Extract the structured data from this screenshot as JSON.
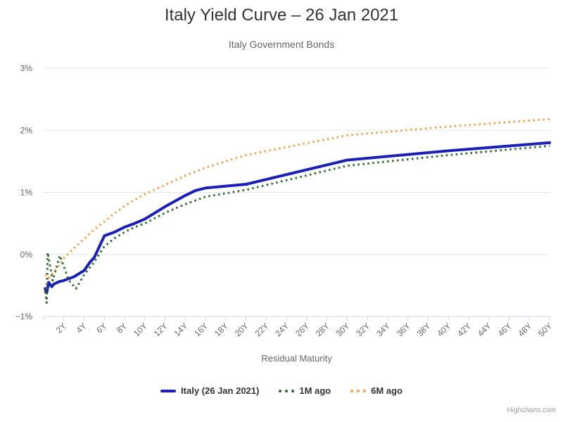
{
  "credits": "Highcharts.com",
  "colors": {
    "grid": "#e6e6e6",
    "axis_line": "#ccd6eb",
    "title_text": "#333333",
    "subtitle_text": "#666666",
    "tick_text": "#666666",
    "italy_blue": "#1b20b4",
    "one_month_green": "#2d6a2d",
    "six_month_orange": "#f3a34c"
  },
  "chart_data": {
    "type": "line",
    "title": "Italy Yield Curve – 26 Jan 2021",
    "subtitle": "Italy Government Bonds",
    "xlabel": "Residual Maturity",
    "ylabel": "",
    "xlim": [
      0,
      50
    ],
    "ylim": [
      -1,
      3
    ],
    "grid": "horizontal",
    "legend_position": "bottom",
    "xticks": {
      "interval": 2,
      "labels": [
        "2Y",
        "4Y",
        "6Y",
        "8Y",
        "10Y",
        "12Y",
        "14Y",
        "16Y",
        "18Y",
        "20Y",
        "22Y",
        "24Y",
        "26Y",
        "28Y",
        "30Y",
        "32Y",
        "34Y",
        "36Y",
        "38Y",
        "40Y",
        "42Y",
        "44Y",
        "46Y",
        "48Y",
        "50Y"
      ]
    },
    "yticks": {
      "values": [
        -1,
        0,
        1,
        2,
        3
      ],
      "labels": [
        "−1%",
        "0%",
        "1%",
        "2%",
        "3%"
      ]
    },
    "series": [
      {
        "name": "Italy (26 Jan 2021)",
        "color": "#1b20b4",
        "style": "solid",
        "width": 4,
        "points": [
          [
            0.15,
            -0.55
          ],
          [
            0.3,
            -0.62
          ],
          [
            0.5,
            -0.45
          ],
          [
            0.8,
            -0.52
          ],
          [
            1,
            -0.48
          ],
          [
            1.5,
            -0.44
          ],
          [
            2,
            -0.42
          ],
          [
            3,
            -0.36
          ],
          [
            4,
            -0.26
          ],
          [
            4.6,
            -0.12
          ],
          [
            5,
            -0.05
          ],
          [
            6,
            0.3
          ],
          [
            7,
            0.36
          ],
          [
            8,
            0.44
          ],
          [
            9,
            0.5
          ],
          [
            10,
            0.57
          ],
          [
            12,
            0.77
          ],
          [
            14,
            0.95
          ],
          [
            15,
            1.03
          ],
          [
            16,
            1.07
          ],
          [
            20,
            1.13
          ],
          [
            30,
            1.52
          ],
          [
            40,
            1.67
          ],
          [
            50,
            1.8
          ]
        ]
      },
      {
        "name": "1M ago",
        "color": "#2d6a2d",
        "style": "dotted",
        "width": 3,
        "points": [
          [
            0.15,
            -0.6
          ],
          [
            0.3,
            -0.78
          ],
          [
            0.4,
            0.03
          ],
          [
            0.9,
            -0.42
          ],
          [
            1.6,
            -0.02
          ],
          [
            2.5,
            -0.42
          ],
          [
            3.2,
            -0.55
          ],
          [
            4,
            -0.33
          ],
          [
            5,
            -0.12
          ],
          [
            6,
            0.13
          ],
          [
            7,
            0.26
          ],
          [
            8,
            0.36
          ],
          [
            9,
            0.44
          ],
          [
            10,
            0.5
          ],
          [
            12,
            0.67
          ],
          [
            14,
            0.81
          ],
          [
            16,
            0.93
          ],
          [
            20,
            1.04
          ],
          [
            30,
            1.43
          ],
          [
            40,
            1.6
          ],
          [
            50,
            1.75
          ]
        ]
      },
      {
        "name": "6M ago",
        "color": "#f3a34c",
        "style": "dotted",
        "width": 3,
        "points": [
          [
            0.15,
            -0.32
          ],
          [
            0.5,
            -0.38
          ],
          [
            0.9,
            -0.3
          ],
          [
            1.3,
            -0.23
          ],
          [
            2,
            -0.06
          ],
          [
            3,
            0.1
          ],
          [
            4,
            0.25
          ],
          [
            5,
            0.4
          ],
          [
            6,
            0.53
          ],
          [
            7,
            0.66
          ],
          [
            8,
            0.78
          ],
          [
            9,
            0.88
          ],
          [
            10,
            0.97
          ],
          [
            12,
            1.12
          ],
          [
            14,
            1.27
          ],
          [
            16,
            1.4
          ],
          [
            20,
            1.6
          ],
          [
            30,
            1.92
          ],
          [
            40,
            2.06
          ],
          [
            50,
            2.18
          ]
        ]
      }
    ]
  }
}
